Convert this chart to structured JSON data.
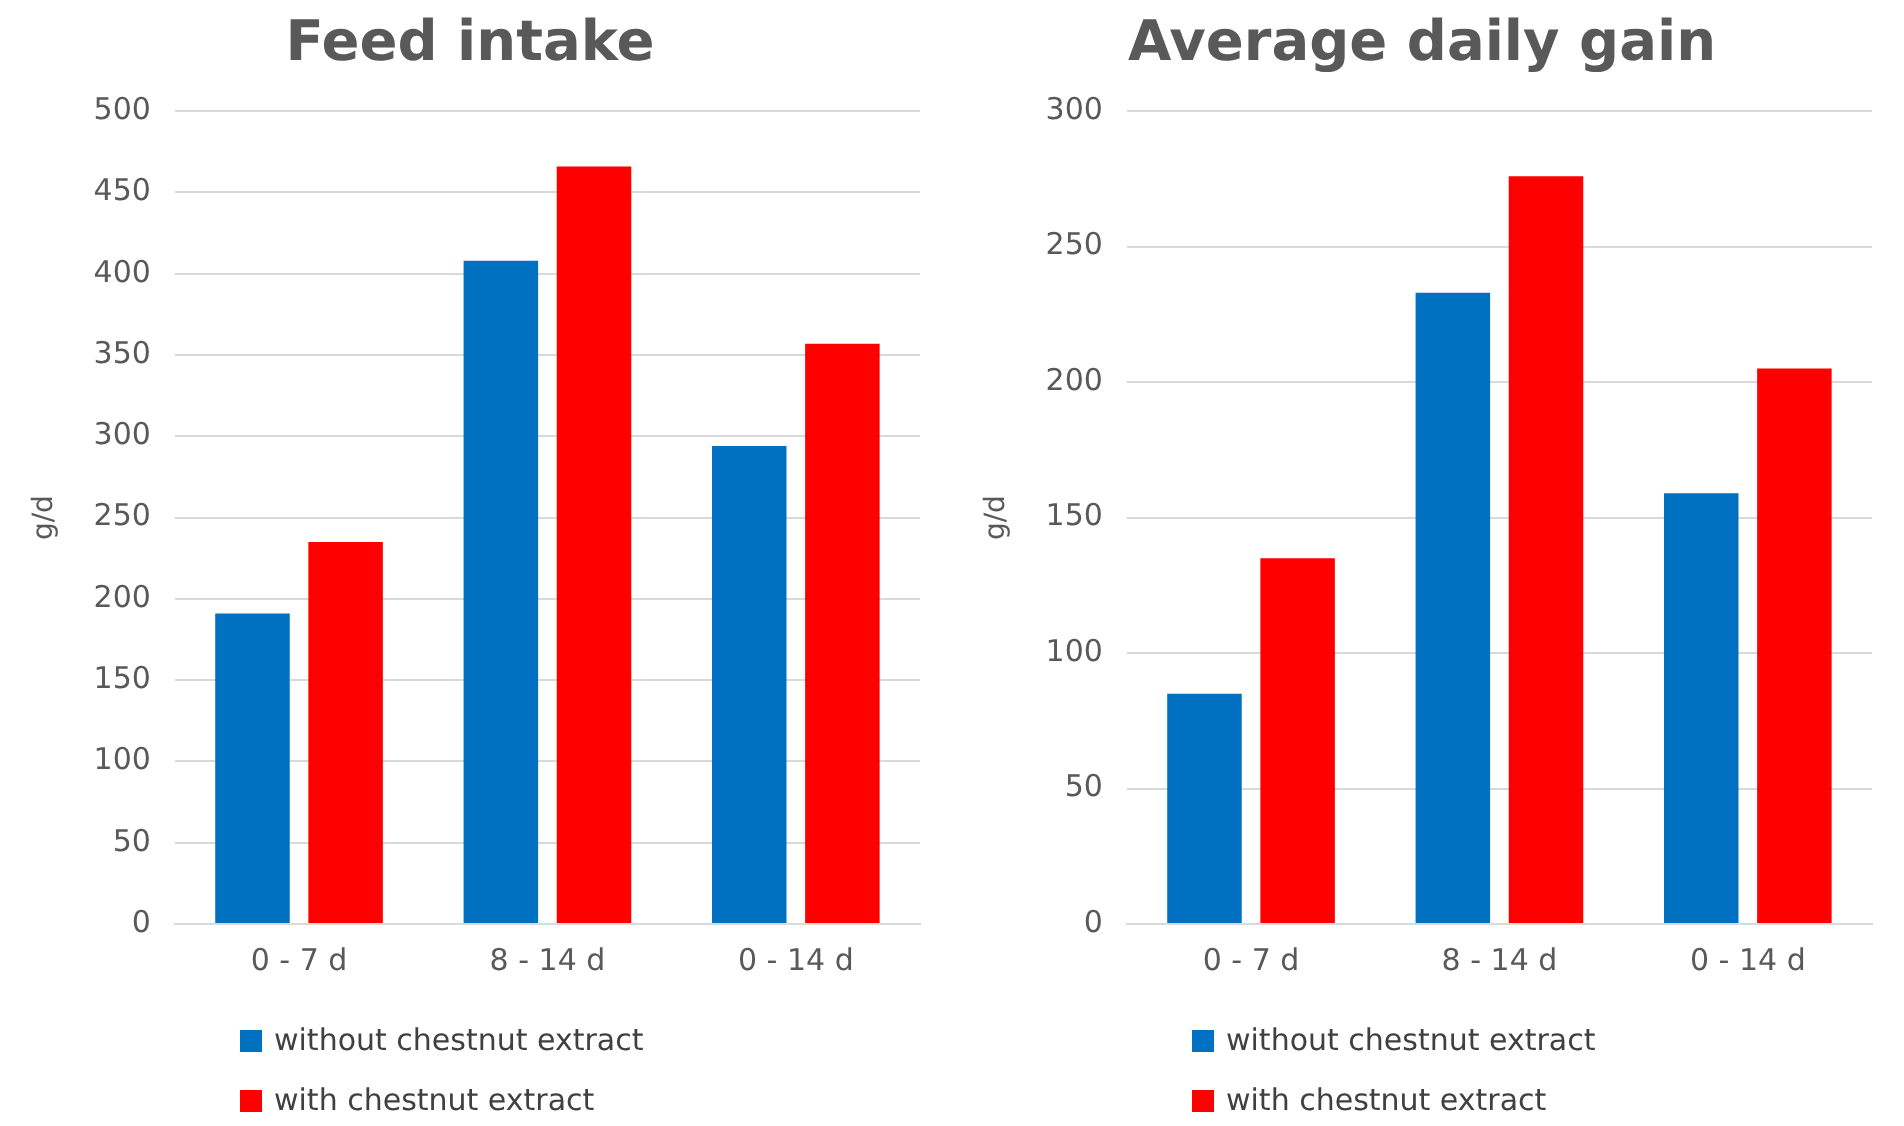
{
  "chart_data": [
    {
      "type": "bar",
      "title": "Feed intake",
      "ylabel": "g/d",
      "categories": [
        "0 - 7 d",
        "8 - 14 d",
        "0 - 14 d"
      ],
      "series": [
        {
          "name": "without chestnut extract",
          "color": "#0070c0",
          "values": [
            191,
            408,
            294
          ]
        },
        {
          "name": "with chestnut extract",
          "color": "#ff0000",
          "values": [
            235,
            466,
            357
          ]
        }
      ],
      "ylim": [
        0,
        500
      ],
      "yticks": [
        0,
        50,
        100,
        150,
        200,
        250,
        300,
        350,
        400,
        450,
        500
      ],
      "grid": "y",
      "legend": "bottom"
    },
    {
      "type": "bar",
      "title": "Average daily gain",
      "ylabel": "g/d",
      "categories": [
        "0 - 7 d",
        "8 - 14 d",
        "0 - 14 d"
      ],
      "series": [
        {
          "name": "without chestnut extract",
          "color": "#0070c0",
          "values": [
            85,
            233,
            159
          ]
        },
        {
          "name": "with chestnut extract",
          "color": "#ff0000",
          "values": [
            135,
            276,
            205
          ]
        }
      ],
      "ylim": [
        0,
        300
      ],
      "yticks": [
        0,
        50,
        100,
        150,
        200,
        250,
        300
      ],
      "grid": "y",
      "legend": "bottom"
    }
  ]
}
